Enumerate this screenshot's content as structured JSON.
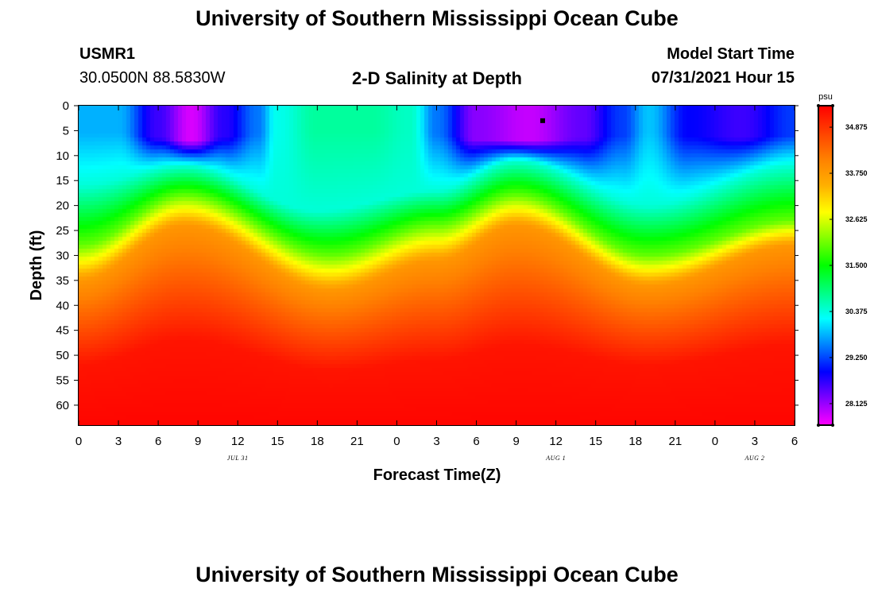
{
  "header": {
    "title": "University of Southern Mississippi Ocean Cube",
    "station": "USMR1",
    "coords": "30.0500N  88.5830W",
    "subtitle": "2-D Salinity at Depth",
    "start_label": "Model Start Time",
    "start_value": "07/31/2021 Hour 15"
  },
  "footer": {
    "title": "University of Southern Mississippi Ocean Cube"
  },
  "colors": {
    "scale": [
      "#ff00ff",
      "#8000ff",
      "#0000ff",
      "#0080ff",
      "#00ffff",
      "#00ff80",
      "#00ff00",
      "#80ff00",
      "#ffff00",
      "#ffb000",
      "#ff8000",
      "#ff4000",
      "#ff0000"
    ],
    "marker": "#000000"
  },
  "chart_data": {
    "type": "heatmap",
    "title": "2-D Salinity at Depth",
    "xlabel": "Forecast Time(Z)",
    "ylabel": "Depth (ft)",
    "units": "psu",
    "x_ticks": [
      "0",
      "3",
      "6",
      "9",
      "12",
      "15",
      "18",
      "21",
      "0",
      "3",
      "6",
      "9",
      "12",
      "15",
      "18",
      "21",
      "0",
      "3",
      "6"
    ],
    "x_hours_range": [
      0,
      54
    ],
    "date_labels": [
      {
        "hour": 12,
        "text": "JUL 31"
      },
      {
        "hour": 36,
        "text": "AUG 1"
      },
      {
        "hour": 51,
        "text": "AUG 2"
      }
    ],
    "y_ticks": [
      0,
      5,
      10,
      15,
      20,
      25,
      30,
      35,
      40,
      45,
      50,
      55,
      60
    ],
    "ylim": [
      0,
      64
    ],
    "colorbar": {
      "range": [
        27.6,
        35.4
      ],
      "ticks": [
        "28.125",
        "29.250",
        "30.375",
        "31.500",
        "32.625",
        "33.750",
        "34.875"
      ]
    },
    "marker": {
      "hour": 35,
      "depth_ft": 3
    },
    "surface_salinity_psu": [
      {
        "hour": 0,
        "value": 29.8
      },
      {
        "hour": 3,
        "value": 29.8
      },
      {
        "hour": 6,
        "value": 28.6
      },
      {
        "hour": 8.5,
        "value": 27.8
      },
      {
        "hour": 11,
        "value": 28.7
      },
      {
        "hour": 13.5,
        "value": 29.5
      },
      {
        "hour": 15,
        "value": 30.3
      },
      {
        "hour": 18,
        "value": 30.7
      },
      {
        "hour": 22,
        "value": 30.7
      },
      {
        "hour": 25,
        "value": 30.5
      },
      {
        "hour": 27,
        "value": 29.5
      },
      {
        "hour": 30,
        "value": 28.2
      },
      {
        "hour": 34,
        "value": 27.9
      },
      {
        "hour": 38,
        "value": 28.4
      },
      {
        "hour": 41,
        "value": 29.2
      },
      {
        "hour": 43,
        "value": 29.9
      },
      {
        "hour": 46,
        "value": 28.9
      },
      {
        "hour": 50,
        "value": 28.6
      },
      {
        "hour": 54,
        "value": 29.2
      }
    ],
    "isohaline_depth_ft": [
      {
        "psu": 30.4,
        "points": [
          {
            "hour": 0,
            "depth": 16
          },
          {
            "hour": 8,
            "depth": 12
          },
          {
            "hour": 18,
            "depth": 21
          },
          {
            "hour": 27,
            "depth": 17
          },
          {
            "hour": 33,
            "depth": 11
          },
          {
            "hour": 43,
            "depth": 20
          },
          {
            "hour": 54,
            "depth": 12
          }
        ]
      },
      {
        "psu": 32.0,
        "points": [
          {
            "hour": 0,
            "depth": 28
          },
          {
            "hour": 8,
            "depth": 18
          },
          {
            "hour": 19,
            "depth": 30
          },
          {
            "hour": 27,
            "depth": 24
          },
          {
            "hour": 33,
            "depth": 18
          },
          {
            "hour": 43,
            "depth": 30
          },
          {
            "hour": 54,
            "depth": 23
          }
        ]
      },
      {
        "psu": 33.8,
        "points": [
          {
            "hour": 0,
            "depth": 35
          },
          {
            "hour": 8,
            "depth": 24
          },
          {
            "hour": 19,
            "depth": 37
          },
          {
            "hour": 27,
            "depth": 31
          },
          {
            "hour": 33,
            "depth": 24
          },
          {
            "hour": 43,
            "depth": 36
          },
          {
            "hour": 54,
            "depth": 28
          }
        ]
      },
      {
        "psu": 35.2,
        "points": [
          {
            "hour": 0,
            "depth": 52
          },
          {
            "hour": 8,
            "depth": 47
          },
          {
            "hour": 19,
            "depth": 53
          },
          {
            "hour": 27,
            "depth": 51
          },
          {
            "hour": 33,
            "depth": 48
          },
          {
            "hour": 43,
            "depth": 52
          },
          {
            "hour": 54,
            "depth": 48
          }
        ]
      }
    ]
  }
}
